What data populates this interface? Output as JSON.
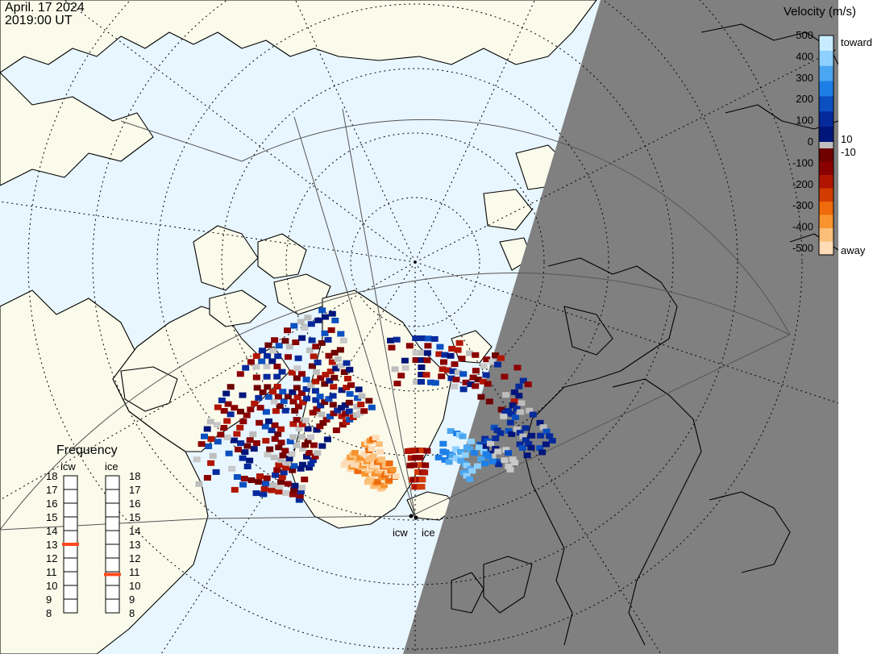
{
  "title": {
    "date": "April. 17 2024",
    "time": "2019:00 UT"
  },
  "velocity_legend": {
    "title": "Velocity (m/s)",
    "ticks": [
      "500",
      "400",
      "300",
      "200",
      "100",
      "0",
      "-100",
      "-200",
      "-300",
      "-400",
      "-500"
    ],
    "label_toward": "toward",
    "label_away": "away",
    "label_pos": "10",
    "label_neg": "-10",
    "colors_toward": [
      "#c8ecff",
      "#8ed0ff",
      "#4aa6f0",
      "#1d7ee6",
      "#0b4fc0",
      "#062a9c",
      "#00157a"
    ],
    "colors_away": [
      "#6e0000",
      "#8b0000",
      "#b11500",
      "#d23c00",
      "#ee6a0a",
      "#f7942e",
      "#fbbf78",
      "#fddcb6"
    ]
  },
  "frequency_legend": {
    "title": "Frequency",
    "radars": [
      "icw",
      "ice"
    ],
    "scale": [
      "18",
      "17",
      "16",
      "15",
      "14",
      "13",
      "12",
      "11",
      "10",
      "9",
      "8"
    ],
    "icw_value": 13,
    "ice_value": 10.8,
    "marker_color": "#ff4a1c"
  },
  "radar_sites": [
    "icw",
    "ice"
  ],
  "map_colors": {
    "ocean": "#e8f6ff",
    "land": "#fbfbeb",
    "night": "#808080",
    "coast": "#000000"
  }
}
